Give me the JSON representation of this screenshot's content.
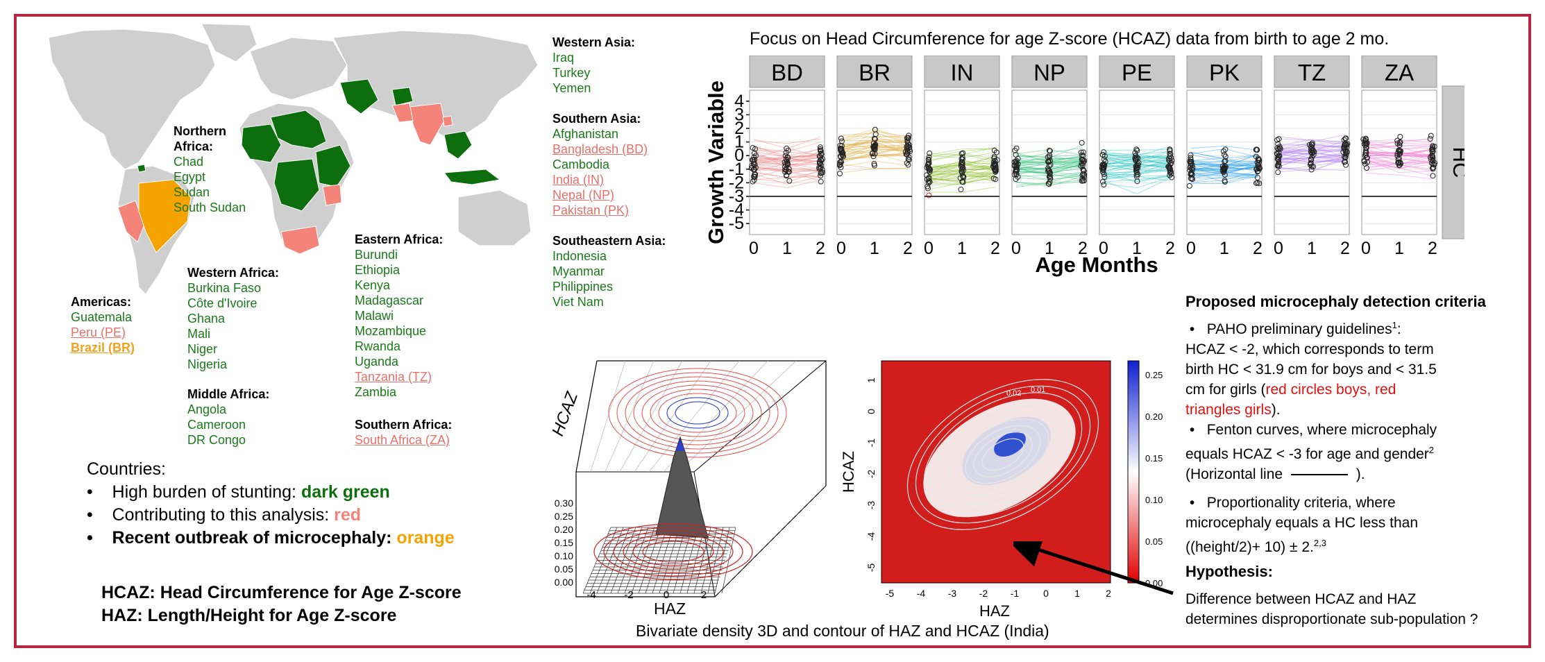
{
  "map_section": {
    "regions": {
      "western_asia": {
        "title": "Western Asia:",
        "countries": [
          {
            "name": "Iraq",
            "status": "stunting"
          },
          {
            "name": "Turkey",
            "status": "stunting"
          },
          {
            "name": "Yemen",
            "status": "stunting"
          }
        ]
      },
      "southern_asia": {
        "title": "Southern Asia:",
        "countries": [
          {
            "name": "Afghanistan",
            "status": "stunting"
          },
          {
            "name": "Bangladesh (BD)",
            "status": "analysis"
          },
          {
            "name": "Cambodia",
            "status": "stunting"
          },
          {
            "name": "India (IN)",
            "status": "analysis"
          },
          {
            "name": "Nepal (NP)",
            "status": "analysis"
          },
          {
            "name": "Pakistan (PK)",
            "status": "analysis"
          }
        ]
      },
      "southeastern_asia": {
        "title": "Southeastern Asia:",
        "countries": [
          {
            "name": "Indonesia",
            "status": "stunting"
          },
          {
            "name": "Myanmar",
            "status": "stunting"
          },
          {
            "name": "Philippines",
            "status": "stunting"
          },
          {
            "name": "Viet Nam",
            "status": "stunting"
          }
        ]
      },
      "northern_africa": {
        "title_line1": "Northern",
        "title_line2": "Africa:",
        "countries": [
          {
            "name": "Chad",
            "status": "stunting"
          },
          {
            "name": "Egypt",
            "status": "stunting"
          },
          {
            "name": "Sudan",
            "status": "stunting"
          },
          {
            "name": "South Sudan",
            "status": "stunting"
          }
        ]
      },
      "eastern_africa": {
        "title": "Eastern Africa:",
        "countries": [
          {
            "name": "Burundi",
            "status": "stunting"
          },
          {
            "name": "Ethiopia",
            "status": "stunting"
          },
          {
            "name": "Kenya",
            "status": "stunting"
          },
          {
            "name": "Madagascar",
            "status": "stunting"
          },
          {
            "name": "Malawi",
            "status": "stunting"
          },
          {
            "name": "Mozambique",
            "status": "stunting"
          },
          {
            "name": "Rwanda",
            "status": "stunting"
          },
          {
            "name": "Uganda",
            "status": "stunting"
          },
          {
            "name": "Tanzania (TZ)",
            "status": "analysis"
          },
          {
            "name": "Zambia",
            "status": "stunting"
          }
        ]
      },
      "western_africa": {
        "title": "Western Africa:",
        "countries": [
          {
            "name": "Burkina Faso",
            "status": "stunting"
          },
          {
            "name": "Côte d'Ivoire",
            "status": "stunting"
          },
          {
            "name": "Ghana",
            "status": "stunting"
          },
          {
            "name": "Mali",
            "status": "stunting"
          },
          {
            "name": "Niger",
            "status": "stunting"
          },
          {
            "name": "Nigeria",
            "status": "stunting"
          }
        ]
      },
      "middle_africa": {
        "title": "Middle Africa:",
        "countries": [
          {
            "name": "Angola",
            "status": "stunting"
          },
          {
            "name": "Cameroon",
            "status": "stunting"
          },
          {
            "name": "DR Congo",
            "status": "stunting"
          }
        ]
      },
      "southern_africa": {
        "title": "Southern Africa:",
        "countries": [
          {
            "name": "South Africa (ZA)",
            "status": "analysis"
          }
        ]
      },
      "americas": {
        "title": "Americas:",
        "countries": [
          {
            "name": "Guatemala",
            "status": "stunting"
          },
          {
            "name": "Peru (PE)",
            "status": "analysis"
          },
          {
            "name": "Brazil (BR)",
            "status": "outbreak"
          }
        ]
      }
    },
    "legend": {
      "title": "Countries:",
      "items": [
        {
          "label": "High burden of stunting: ",
          "value": "dark green"
        },
        {
          "label": "Contributing to this analysis: ",
          "value": "red"
        },
        {
          "label": "Recent outbreak of microcephaly: ",
          "value": "orange"
        }
      ]
    },
    "definitions": {
      "hcaz": "HCAZ: Head Circumference for Age Z-score",
      "haz": "HAZ: Length/Height for Age Z-score"
    }
  },
  "colors": {
    "stunting": "#0d6e0d",
    "analysis": "#f4847a",
    "outbreak": "#f5a300",
    "frame": "#b5273e"
  },
  "chart_data": [
    {
      "type": "line",
      "title": "Focus on Head Circumference for age  Z-score (HCAZ) data from birth to age 2 mo.",
      "xlabel": "Age Months",
      "ylabel": "Growth Variable",
      "strip_right": "HC",
      "panels": [
        {
          "label": "BD",
          "color": "#f08080",
          "mean": [
            -0.6,
            -0.7,
            -0.6
          ]
        },
        {
          "label": "BR",
          "color": "#e0b04a",
          "mean": [
            0.2,
            0.6,
            0.4
          ]
        },
        {
          "label": "IN",
          "color": "#8cbf2a",
          "mean": [
            -1.2,
            -1.0,
            -0.9
          ]
        },
        {
          "label": "NP",
          "color": "#2ec27a",
          "mean": [
            -0.9,
            -0.9,
            -0.7
          ]
        },
        {
          "label": "PE",
          "color": "#1fc4c4",
          "mean": [
            -0.8,
            -0.8,
            -0.6
          ]
        },
        {
          "label": "PK",
          "color": "#2aa0e8",
          "mean": [
            -0.8,
            -0.9,
            -0.9
          ]
        },
        {
          "label": "TZ",
          "color": "#b27ef0",
          "mean": [
            0.1,
            0.2,
            0.3
          ]
        },
        {
          "label": "ZA",
          "color": "#f07ed0",
          "mean": [
            0.1,
            0.0,
            0.0
          ]
        }
      ],
      "x_ticks": [
        "0",
        "1",
        "2"
      ],
      "y_ticks": [
        "4",
        "3",
        "2",
        "1",
        "0",
        "-1",
        "-2",
        "-3",
        "-4",
        "-5"
      ],
      "ylim": [
        -5.5,
        4.5
      ],
      "xlim": [
        0,
        2
      ],
      "hline": -3
    },
    {
      "type": "surface3d",
      "ylabel": "HCAZ",
      "xlabel": "HAZ",
      "x_ticks": [
        "-4",
        "-2",
        "0",
        "2"
      ],
      "z_ticks": [
        "0.30",
        "0.25",
        "0.20",
        "0.15",
        "0.10",
        "0.05",
        "0.00"
      ]
    },
    {
      "type": "heatmap",
      "xlabel": "HAZ",
      "ylabel": "HCAZ",
      "x_ticks": [
        "-5",
        "-4",
        "-3",
        "-2",
        "-1",
        "0",
        "1",
        "2"
      ],
      "y_ticks": [
        "1",
        "0",
        "-1",
        "-2",
        "-3",
        "-4",
        "-5"
      ],
      "colorbar_ticks": [
        "0.25",
        "0.20",
        "0.15",
        "0.10",
        "0.05",
        "0.00"
      ],
      "contour_labels": [
        "0.02",
        "0.01"
      ]
    }
  ],
  "density_caption": "Bivariate density 3D and contour of HAZ and HCAZ (India)",
  "criteria": {
    "title": "Proposed microcephaly detection criteria",
    "paho_line1": "PAHO preliminary guidelines",
    "paho_sup": "1",
    "paho_colon": ":",
    "paho_line2": "HCAZ < -2, which corresponds to term",
    "paho_line3": "birth HC < 31.9 cm for boys and < 31.5",
    "paho_line4_a": "cm for girls (",
    "paho_line4_b": "red circles boys, red",
    "paho_line5_b": "triangles girls",
    "paho_line5_c": ").",
    "fenton_line1": "Fenton curves, where microcephaly",
    "fenton_line2": "equals HCAZ < -3 for age and gender",
    "fenton_sup": "2",
    "fenton_line3_a": "(Horizontal line",
    "fenton_line3_b": ").",
    "prop_line1": "Proportionality criteria, where",
    "prop_line2": "microcephaly equals a HC less than",
    "prop_line3": "((height/2)+ 10) ± 2.",
    "prop_sup": "2,3",
    "hypothesis_title": "Hypothesis:",
    "hypothesis_line1": "Difference between HCAZ and HAZ",
    "hypothesis_line2": "determines disproportionate sub-population ?"
  }
}
